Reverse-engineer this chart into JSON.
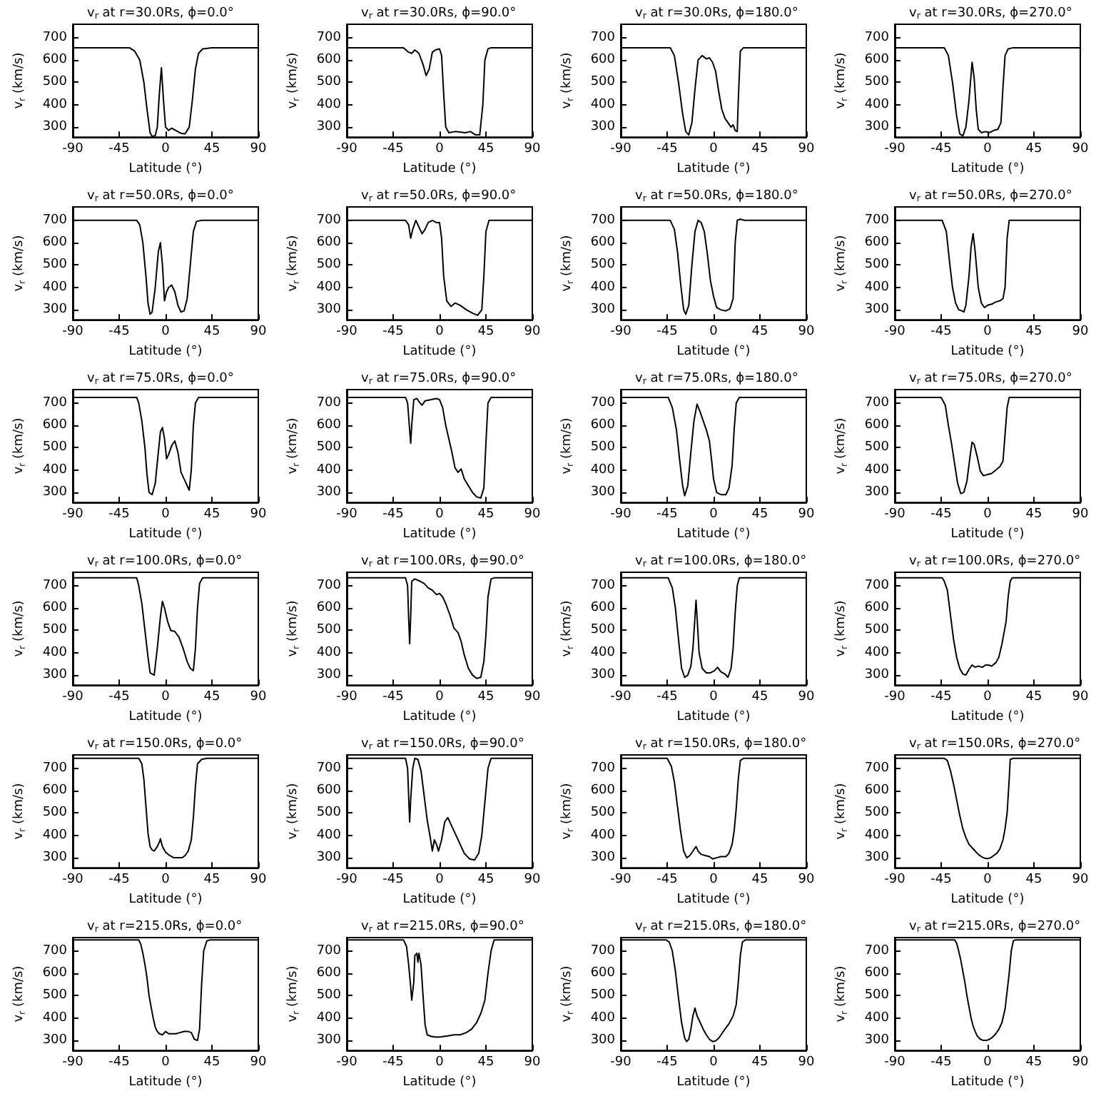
{
  "chart_data": [
    {
      "type": "line",
      "title": "v$_{r}$ at r=30.0Rs, ϕ=0.0°",
      "xlabel": "Latitude (°)",
      "ylabel": "v$_{r}$ (km/s)",
      "color": "#000000",
      "xlim": [
        -90,
        90
      ],
      "xticks": [
        -90,
        -45,
        0,
        45,
        90
      ],
      "ylim": [
        255,
        760
      ],
      "yticks": [
        300,
        400,
        500,
        600,
        700
      ],
      "x": [
        -90,
        -35,
        -30,
        -25,
        -21,
        -18,
        -15,
        -13,
        -10,
        -8,
        -6,
        -4,
        -2,
        0,
        3,
        6,
        10,
        15,
        19,
        23,
        26,
        29,
        32,
        36,
        45,
        90
      ],
      "values": [
        655,
        655,
        640,
        600,
        500,
        380,
        275,
        258,
        262,
        300,
        450,
        565,
        420,
        300,
        285,
        295,
        285,
        272,
        270,
        300,
        420,
        560,
        630,
        650,
        655,
        655
      ]
    },
    {
      "type": "line",
      "title": "v$_{r}$ at r=30.0Rs, ϕ=90.0°",
      "xlabel": "Latitude (°)",
      "ylabel": "v$_{r}$ (km/s)",
      "color": "#000000",
      "xlim": [
        -90,
        90
      ],
      "xticks": [
        -90,
        -45,
        0,
        45,
        90
      ],
      "ylim": [
        255,
        760
      ],
      "yticks": [
        300,
        400,
        500,
        600,
        700
      ],
      "x": [
        -90,
        -35,
        -30,
        -27,
        -24,
        -20,
        -16,
        -13,
        -10,
        -7,
        -4,
        0,
        2,
        4,
        6,
        9,
        15,
        25,
        30,
        35,
        39,
        42,
        44,
        47,
        50,
        90
      ],
      "values": [
        655,
        655,
        635,
        630,
        645,
        630,
        580,
        530,
        560,
        635,
        645,
        650,
        620,
        450,
        300,
        275,
        280,
        275,
        280,
        265,
        265,
        400,
        600,
        650,
        655,
        655
      ]
    },
    {
      "type": "line",
      "title": "v$_{r}$ at r=30.0Rs, ϕ=180.0°",
      "xlabel": "Latitude (°)",
      "ylabel": "v$_{r}$ (km/s)",
      "color": "#000000",
      "xlim": [
        -90,
        90
      ],
      "xticks": [
        -90,
        -45,
        0,
        45,
        90
      ],
      "ylim": [
        255,
        760
      ],
      "yticks": [
        300,
        400,
        500,
        600,
        700
      ],
      "x": [
        -90,
        -42,
        -38,
        -34,
        -30,
        -27,
        -24,
        -21,
        -18,
        -15,
        -11,
        -7,
        -4,
        -1,
        2,
        5,
        8,
        11,
        14,
        17,
        19,
        21,
        23,
        24,
        26,
        29,
        90
      ],
      "values": [
        655,
        655,
        620,
        500,
        360,
        280,
        265,
        320,
        470,
        600,
        620,
        605,
        610,
        590,
        550,
        460,
        380,
        340,
        320,
        300,
        310,
        285,
        280,
        420,
        640,
        655,
        655
      ]
    },
    {
      "type": "line",
      "title": "v$_{r}$ at r=30.0Rs, ϕ=270.0°",
      "xlabel": "Latitude (°)",
      "ylabel": "v$_{r}$ (km/s)",
      "color": "#000000",
      "xlim": [
        -90,
        90
      ],
      "xticks": [
        -90,
        -45,
        0,
        45,
        90
      ],
      "ylim": [
        255,
        760
      ],
      "yticks": [
        300,
        400,
        500,
        600,
        700
      ],
      "x": [
        -90,
        -42,
        -38,
        -34,
        -30,
        -27,
        -24,
        -21,
        -18,
        -15,
        -13,
        -11,
        -9,
        -6,
        -2,
        2,
        6,
        10,
        13,
        15,
        17,
        20,
        25,
        90
      ],
      "values": [
        655,
        655,
        620,
        500,
        350,
        270,
        260,
        300,
        420,
        590,
        520,
        380,
        290,
        275,
        280,
        275,
        285,
        290,
        320,
        480,
        620,
        650,
        655,
        655
      ]
    },
    {
      "type": "line",
      "title": "v$_{r}$ at r=50.0Rs, ϕ=0.0°",
      "xlabel": "Latitude (°)",
      "ylabel": "v$_{r}$ (km/s)",
      "color": "#000000",
      "xlim": [
        -90,
        90
      ],
      "xticks": [
        -90,
        -45,
        0,
        45,
        90
      ],
      "ylim": [
        255,
        760
      ],
      "yticks": [
        300,
        400,
        500,
        600,
        700
      ],
      "x": [
        -90,
        -28,
        -25,
        -22,
        -19,
        -17,
        -15,
        -13,
        -10,
        -7,
        -5,
        -3,
        -1,
        1,
        3,
        6,
        9,
        12,
        15,
        18,
        21,
        24,
        27,
        30,
        35,
        90
      ],
      "values": [
        700,
        700,
        680,
        600,
        450,
        330,
        280,
        290,
        400,
        560,
        600,
        500,
        340,
        380,
        400,
        410,
        380,
        320,
        290,
        295,
        350,
        500,
        650,
        695,
        700,
        700
      ]
    },
    {
      "type": "line",
      "title": "v$_{r}$ at r=50.0Rs, ϕ=90.0°",
      "xlabel": "Latitude (°)",
      "ylabel": "v$_{r}$ (km/s)",
      "color": "#000000",
      "xlim": [
        -90,
        90
      ],
      "xticks": [
        -90,
        -45,
        0,
        45,
        90
      ],
      "ylim": [
        255,
        760
      ],
      "yticks": [
        300,
        400,
        500,
        600,
        700
      ],
      "x": [
        -90,
        -33,
        -30,
        -28,
        -26,
        -23,
        -20,
        -17,
        -14,
        -11,
        -7,
        -3,
        0,
        2,
        4,
        7,
        11,
        15,
        20,
        26,
        32,
        37,
        41,
        43,
        45,
        48,
        90
      ],
      "values": [
        700,
        700,
        680,
        620,
        660,
        700,
        670,
        640,
        660,
        690,
        700,
        690,
        690,
        620,
        450,
        340,
        315,
        330,
        320,
        300,
        285,
        275,
        300,
        450,
        650,
        700,
        700
      ]
    },
    {
      "type": "line",
      "title": "v$_{r}$ at r=50.0Rs, ϕ=180.0°",
      "xlabel": "Latitude (°)",
      "ylabel": "v$_{r}$ (km/s)",
      "color": "#000000",
      "xlim": [
        -90,
        90
      ],
      "xticks": [
        -90,
        -45,
        0,
        45,
        90
      ],
      "ylim": [
        255,
        760
      ],
      "yticks": [
        300,
        400,
        500,
        600,
        700
      ],
      "x": [
        -90,
        -42,
        -38,
        -35,
        -32,
        -29,
        -27,
        -24,
        -21,
        -18,
        -15,
        -12,
        -9,
        -6,
        -3,
        0,
        3,
        7,
        12,
        16,
        19,
        21,
        23,
        26,
        30,
        90
      ],
      "values": [
        700,
        700,
        660,
        560,
        420,
        300,
        280,
        320,
        500,
        650,
        700,
        690,
        650,
        550,
        430,
        360,
        310,
        300,
        295,
        305,
        350,
        600,
        700,
        705,
        700,
        700
      ]
    },
    {
      "type": "line",
      "title": "v$_{r}$ at r=50.0Rs, ϕ=270.0°",
      "xlabel": "Latitude (°)",
      "ylabel": "v$_{r}$ (km/s)",
      "color": "#000000",
      "xlim": [
        -90,
        90
      ],
      "xticks": [
        -90,
        -45,
        0,
        45,
        90
      ],
      "ylim": [
        255,
        760
      ],
      "yticks": [
        300,
        400,
        500,
        600,
        700
      ],
      "x": [
        -90,
        -44,
        -40,
        -37,
        -34,
        -31,
        -28,
        -25,
        -23,
        -21,
        -18,
        -16,
        -14,
        -12,
        -9,
        -6,
        -3,
        0,
        4,
        8,
        12,
        15,
        17,
        19,
        21,
        30,
        90
      ],
      "values": [
        700,
        700,
        650,
        520,
        400,
        330,
        300,
        295,
        290,
        320,
        450,
        580,
        640,
        560,
        400,
        330,
        310,
        320,
        325,
        335,
        340,
        350,
        400,
        620,
        700,
        700,
        700
      ]
    },
    {
      "type": "line",
      "title": "v$_{r}$ at r=75.0Rs, ϕ=0.0°",
      "xlabel": "Latitude (°)",
      "ylabel": "v$_{r}$ (km/s)",
      "color": "#000000",
      "xlim": [
        -90,
        90
      ],
      "xticks": [
        -90,
        -45,
        0,
        45,
        90
      ],
      "ylim": [
        255,
        760
      ],
      "yticks": [
        300,
        400,
        500,
        600,
        700
      ],
      "x": [
        -90,
        -28,
        -26,
        -23,
        -20,
        -18,
        -16,
        -13,
        -10,
        -7,
        -5,
        -3,
        -1,
        1,
        3,
        6,
        9,
        12,
        15,
        19,
        23,
        25,
        27,
        29,
        32,
        90
      ],
      "values": [
        725,
        725,
        700,
        620,
        500,
        380,
        300,
        290,
        340,
        480,
        570,
        590,
        540,
        450,
        470,
        510,
        530,
        480,
        390,
        350,
        310,
        400,
        600,
        700,
        725,
        725
      ]
    },
    {
      "type": "line",
      "title": "v$_{r}$ at r=75.0Rs, ϕ=90.0°",
      "xlabel": "Latitude (°)",
      "ylabel": "v$_{r}$ (km/s)",
      "color": "#000000",
      "xlim": [
        -90,
        90
      ],
      "xticks": [
        -90,
        -45,
        0,
        45,
        90
      ],
      "ylim": [
        255,
        760
      ],
      "yticks": [
        300,
        400,
        500,
        600,
        700
      ],
      "x": [
        -90,
        -33,
        -31,
        -29,
        -28,
        -27,
        -25,
        -22,
        -19,
        -17,
        -14,
        -8,
        -3,
        0,
        3,
        6,
        9,
        12,
        15,
        18,
        21,
        24,
        28,
        32,
        36,
        40,
        43,
        45,
        47,
        50,
        90
      ],
      "values": [
        725,
        725,
        700,
        580,
        520,
        600,
        715,
        720,
        700,
        690,
        710,
        715,
        720,
        715,
        680,
        600,
        540,
        480,
        410,
        390,
        405,
        360,
        330,
        300,
        280,
        275,
        320,
        520,
        700,
        725,
        725
      ]
    },
    {
      "type": "line",
      "title": "v$_{r}$ at r=75.0Rs, ϕ=180.0°",
      "xlabel": "Latitude (°)",
      "ylabel": "v$_{r}$ (km/s)",
      "color": "#000000",
      "xlim": [
        -90,
        90
      ],
      "xticks": [
        -90,
        -45,
        0,
        45,
        90
      ],
      "ylim": [
        255,
        760
      ],
      "yticks": [
        300,
        400,
        500,
        600,
        700
      ],
      "x": [
        -90,
        -44,
        -40,
        -36,
        -33,
        -30,
        -28,
        -25,
        -22,
        -19,
        -16,
        -13,
        -10,
        -7,
        -4,
        -2,
        0,
        3,
        7,
        12,
        15,
        18,
        20,
        22,
        25,
        90
      ],
      "values": [
        725,
        725,
        680,
        580,
        450,
        330,
        285,
        330,
        480,
        620,
        695,
        660,
        620,
        580,
        530,
        450,
        360,
        300,
        290,
        290,
        320,
        420,
        580,
        700,
        725,
        725
      ]
    },
    {
      "type": "line",
      "title": "v$_{r}$ at r=75.0Rs, ϕ=270.0°",
      "xlabel": "Latitude (°)",
      "ylabel": "v$_{r}$ (km/s)",
      "color": "#000000",
      "xlim": [
        -90,
        90
      ],
      "xticks": [
        -90,
        -45,
        0,
        45,
        90
      ],
      "ylim": [
        255,
        760
      ],
      "yticks": [
        300,
        400,
        500,
        600,
        700
      ],
      "x": [
        -90,
        -45,
        -41,
        -38,
        -35,
        -32,
        -29,
        -26,
        -23,
        -20,
        -17,
        -15,
        -13,
        -10,
        -7,
        -4,
        0,
        4,
        8,
        12,
        15,
        17,
        19,
        21,
        90
      ],
      "values": [
        725,
        725,
        690,
        600,
        520,
        430,
        340,
        295,
        300,
        350,
        460,
        525,
        515,
        460,
        395,
        375,
        380,
        385,
        400,
        415,
        440,
        560,
        680,
        725,
        725
      ]
    },
    {
      "type": "line",
      "title": "v$_{r}$ at r=100.0Rs, ϕ=0.0°",
      "xlabel": "Latitude (°)",
      "ylabel": "v$_{r}$ (km/s)",
      "color": "#000000",
      "xlim": [
        -90,
        90
      ],
      "xticks": [
        -90,
        -45,
        0,
        45,
        90
      ],
      "ylim": [
        255,
        760
      ],
      "yticks": [
        300,
        400,
        500,
        600,
        700
      ],
      "x": [
        -90,
        -28,
        -26,
        -23,
        -20,
        -17,
        -15,
        -11,
        -8,
        -5,
        -3,
        -1,
        2,
        5,
        9,
        13,
        17,
        21,
        24,
        27,
        29,
        31,
        33,
        36,
        90
      ],
      "values": [
        735,
        735,
        700,
        620,
        500,
        380,
        310,
        300,
        420,
        560,
        630,
        600,
        540,
        500,
        495,
        470,
        420,
        360,
        330,
        320,
        420,
        600,
        710,
        735,
        735
      ]
    },
    {
      "type": "line",
      "title": "v$_{r}$ at r=100.0Rs, ϕ=90.0°",
      "xlabel": "Latitude (°)",
      "ylabel": "v$_{r}$ (km/s)",
      "color": "#000000",
      "xlim": [
        -90,
        90
      ],
      "xticks": [
        -90,
        -45,
        0,
        45,
        90
      ],
      "ylim": [
        255,
        760
      ],
      "yticks": [
        300,
        400,
        500,
        600,
        700
      ],
      "x": [
        -90,
        -33,
        -31,
        -30,
        -29,
        -28,
        -27,
        -24,
        -19,
        -15,
        -11,
        -7,
        -3,
        0,
        3,
        6,
        10,
        14,
        18,
        21,
        24,
        28,
        32,
        36,
        40,
        43,
        45,
        47,
        50,
        53,
        90
      ],
      "values": [
        735,
        735,
        700,
        560,
        440,
        560,
        720,
        730,
        720,
        710,
        690,
        680,
        660,
        665,
        650,
        620,
        570,
        510,
        490,
        450,
        390,
        330,
        300,
        285,
        290,
        360,
        480,
        650,
        730,
        735,
        735
      ]
    },
    {
      "type": "line",
      "title": "v$_{r}$ at r=100.0Rs, ϕ=180.0°",
      "xlabel": "Latitude (°)",
      "ylabel": "v$_{r}$ (km/s)",
      "color": "#000000",
      "xlim": [
        -90,
        90
      ],
      "xticks": [
        -90,
        -45,
        0,
        45,
        90
      ],
      "ylim": [
        255,
        760
      ],
      "yticks": [
        300,
        400,
        500,
        600,
        700
      ],
      "x": [
        -90,
        -44,
        -40,
        -37,
        -34,
        -31,
        -28,
        -25,
        -22,
        -20,
        -18,
        -17,
        -16,
        -14,
        -11,
        -7,
        -3,
        1,
        4,
        7,
        11,
        14,
        17,
        19,
        21,
        23,
        25,
        90
      ],
      "values": [
        735,
        735,
        690,
        600,
        460,
        330,
        290,
        300,
        340,
        420,
        560,
        635,
        560,
        400,
        330,
        310,
        310,
        320,
        335,
        315,
        305,
        290,
        330,
        420,
        580,
        700,
        735,
        735
      ]
    },
    {
      "type": "line",
      "title": "v$_{r}$ at r=100.0Rs, ϕ=270.0°",
      "xlabel": "Latitude (°)",
      "ylabel": "v$_{r}$ (km/s)",
      "color": "#000000",
      "xlim": [
        -90,
        90
      ],
      "xticks": [
        -90,
        -45,
        0,
        45,
        90
      ],
      "ylim": [
        255,
        760
      ],
      "yticks": [
        300,
        400,
        500,
        600,
        700
      ],
      "x": [
        -90,
        -44,
        -42,
        -39,
        -36,
        -33,
        -30,
        -27,
        -24,
        -21,
        -18,
        -15,
        -12,
        -9,
        -5,
        -2,
        1,
        4,
        8,
        11,
        14,
        16,
        18,
        20,
        22,
        24,
        90
      ],
      "values": [
        735,
        735,
        720,
        680,
        570,
        460,
        380,
        330,
        305,
        300,
        325,
        345,
        335,
        340,
        335,
        345,
        345,
        340,
        355,
        380,
        440,
        490,
        540,
        650,
        720,
        735,
        735
      ]
    },
    {
      "type": "line",
      "title": "v$_{r}$ at r=150.0Rs, ϕ=0.0°",
      "xlabel": "Latitude (°)",
      "ylabel": "v$_{r}$ (km/s)",
      "color": "#000000",
      "xlim": [
        -90,
        90
      ],
      "xticks": [
        -90,
        -45,
        0,
        45,
        90
      ],
      "ylim": [
        255,
        760
      ],
      "yticks": [
        300,
        400,
        500,
        600,
        700
      ],
      "x": [
        -90,
        -26,
        -23,
        -21,
        -19,
        -17,
        -15,
        -13,
        -11,
        -8,
        -6,
        -5,
        -3,
        0,
        4,
        8,
        12,
        16,
        19,
        22,
        25,
        27,
        29,
        31,
        35,
        40,
        90
      ],
      "values": [
        745,
        745,
        720,
        650,
        530,
        410,
        350,
        335,
        330,
        350,
        370,
        385,
        350,
        325,
        310,
        300,
        300,
        300,
        310,
        330,
        380,
        480,
        620,
        720,
        740,
        745,
        745
      ]
    },
    {
      "type": "line",
      "title": "v$_{r}$ at r=150.0Rs, ϕ=90.0°",
      "xlabel": "Latitude (°)",
      "ylabel": "v$_{r}$ (km/s)",
      "color": "#000000",
      "xlim": [
        -90,
        90
      ],
      "xticks": [
        -90,
        -45,
        0,
        45,
        90
      ],
      "ylim": [
        255,
        760
      ],
      "yticks": [
        300,
        400,
        500,
        600,
        700
      ],
      "x": [
        -90,
        -33,
        -31,
        -30,
        -29,
        -28,
        -26,
        -24,
        -21,
        -18,
        -15,
        -12,
        -9,
        -7,
        -5,
        -3,
        -1,
        2,
        5,
        8,
        11,
        15,
        19,
        24,
        29,
        34,
        38,
        41,
        44,
        47,
        50,
        90
      ],
      "values": [
        745,
        745,
        700,
        580,
        460,
        560,
        700,
        745,
        740,
        690,
        580,
        470,
        390,
        330,
        380,
        360,
        330,
        380,
        460,
        480,
        450,
        410,
        370,
        320,
        295,
        290,
        320,
        400,
        550,
        700,
        745,
        745
      ]
    },
    {
      "type": "line",
      "title": "v$_{r}$ at r=150.0Rs, ϕ=180.0°",
      "xlabel": "Latitude (°)",
      "ylabel": "v$_{r}$ (km/s)",
      "color": "#000000",
      "xlim": [
        -90,
        90
      ],
      "xticks": [
        -90,
        -45,
        0,
        45,
        90
      ],
      "ylim": [
        255,
        760
      ],
      "yticks": [
        300,
        400,
        500,
        600,
        700
      ],
      "x": [
        -90,
        -45,
        -41,
        -38,
        -35,
        -32,
        -29,
        -26,
        -23,
        -20,
        -17,
        -15,
        -12,
        -8,
        -4,
        -1,
        3,
        7,
        12,
        15,
        18,
        20,
        22,
        24,
        26,
        29,
        90
      ],
      "values": [
        745,
        745,
        710,
        640,
        530,
        420,
        330,
        300,
        310,
        330,
        350,
        330,
        315,
        310,
        305,
        295,
        300,
        305,
        305,
        320,
        360,
        420,
        520,
        650,
        735,
        745,
        745
      ]
    },
    {
      "type": "line",
      "title": "v$_{r}$ at r=150.0Rs, ϕ=270.0°",
      "xlabel": "Latitude (°)",
      "ylabel": "v$_{r}$ (km/s)",
      "color": "#000000",
      "xlim": [
        -90,
        90
      ],
      "xticks": [
        -90,
        -45,
        0,
        45,
        90
      ],
      "ylim": [
        255,
        760
      ],
      "yticks": [
        300,
        400,
        500,
        600,
        700
      ],
      "x": [
        -90,
        -42,
        -39,
        -36,
        -33,
        -30,
        -27,
        -24,
        -21,
        -18,
        -15,
        -12,
        -9,
        -6,
        -3,
        0,
        3,
        6,
        9,
        12,
        15,
        17,
        19,
        21,
        22,
        25,
        90
      ],
      "values": [
        745,
        745,
        735,
        690,
        630,
        560,
        490,
        430,
        390,
        360,
        345,
        330,
        315,
        305,
        298,
        296,
        300,
        310,
        320,
        340,
        380,
        430,
        500,
        650,
        740,
        745,
        745
      ]
    },
    {
      "type": "line",
      "title": "v$_{r}$ at r=215.0Rs, ϕ=0.0°",
      "xlabel": "Latitude (°)",
      "ylabel": "v$_{r}$ (km/s)",
      "color": "#000000",
      "xlim": [
        -90,
        90
      ],
      "xticks": [
        -90,
        -45,
        0,
        45,
        90
      ],
      "ylim": [
        255,
        760
      ],
      "yticks": [
        300,
        400,
        500,
        600,
        700
      ],
      "x": [
        -90,
        -26,
        -24,
        -22,
        -20,
        -18,
        -16,
        -14,
        -12,
        -10,
        -8,
        -6,
        -3,
        0,
        3,
        6,
        10,
        14,
        18,
        22,
        25,
        28,
        31,
        33,
        35,
        37,
        40,
        43,
        90
      ],
      "values": [
        750,
        750,
        730,
        690,
        640,
        580,
        500,
        450,
        400,
        360,
        340,
        330,
        325,
        340,
        330,
        330,
        330,
        335,
        340,
        340,
        335,
        305,
        300,
        350,
        550,
        700,
        745,
        750,
        750
      ]
    },
    {
      "type": "line",
      "title": "v$_{r}$ at r=215.0Rs, ϕ=90.0°",
      "xlabel": "Latitude (°)",
      "ylabel": "v$_{r}$ (km/s)",
      "color": "#000000",
      "xlim": [
        -90,
        90
      ],
      "xticks": [
        -90,
        -45,
        0,
        45,
        90
      ],
      "ylim": [
        255,
        760
      ],
      "yticks": [
        300,
        400,
        500,
        600,
        700
      ],
      "x": [
        -90,
        -35,
        -32,
        -30,
        -28,
        -27,
        -25,
        -24,
        -22,
        -21,
        -20,
        -18,
        -16,
        -14,
        -12,
        -8,
        -3,
        2,
        8,
        14,
        20,
        26,
        31,
        36,
        40,
        44,
        47,
        50,
        53,
        90
      ],
      "values": [
        750,
        750,
        720,
        640,
        540,
        480,
        560,
        680,
        690,
        650,
        690,
        640,
        500,
        370,
        325,
        318,
        315,
        316,
        320,
        325,
        325,
        335,
        350,
        380,
        420,
        480,
        600,
        700,
        750,
        750
      ]
    },
    {
      "type": "line",
      "title": "v$_{r}$ at r=215.0Rs, ϕ=180.0°",
      "xlabel": "Latitude (°)",
      "ylabel": "v$_{r}$ (km/s)",
      "color": "#000000",
      "xlim": [
        -90,
        90
      ],
      "xticks": [
        -90,
        -45,
        0,
        45,
        90
      ],
      "ylim": [
        255,
        760
      ],
      "yticks": [
        300,
        400,
        500,
        600,
        700
      ],
      "x": [
        -90,
        -46,
        -43,
        -40,
        -37,
        -34,
        -31,
        -28,
        -26,
        -24,
        -22,
        -20,
        -18,
        -16,
        -13,
        -10,
        -7,
        -4,
        -1,
        2,
        5,
        8,
        11,
        15,
        19,
        22,
        24,
        26,
        28,
        31,
        90
      ],
      "values": [
        750,
        750,
        740,
        700,
        610,
        490,
        380,
        310,
        295,
        305,
        350,
        410,
        445,
        410,
        380,
        350,
        325,
        305,
        295,
        298,
        310,
        330,
        350,
        375,
        410,
        460,
        560,
        680,
        740,
        750,
        750
      ]
    },
    {
      "type": "line",
      "title": "v$_{r}$ at r=215.0Rs, ϕ=270.0°",
      "xlabel": "Latitude (°)",
      "ylabel": "v$_{r}$ (km/s)",
      "color": "#000000",
      "xlim": [
        -90,
        90
      ],
      "xticks": [
        -90,
        -45,
        0,
        45,
        90
      ],
      "ylim": [
        255,
        760
      ],
      "yticks": [
        300,
        400,
        500,
        600,
        700
      ],
      "x": [
        -90,
        -32,
        -30,
        -28,
        -26,
        -24,
        -22,
        -20,
        -18,
        -16,
        -14,
        -12,
        -10,
        -7,
        -4,
        -1,
        2,
        5,
        8,
        11,
        14,
        17,
        19,
        21,
        23,
        25,
        27,
        90
      ],
      "values": [
        750,
        750,
        735,
        700,
        660,
        610,
        560,
        500,
        450,
        400,
        365,
        340,
        320,
        305,
        300,
        300,
        305,
        315,
        330,
        350,
        380,
        440,
        520,
        600,
        700,
        745,
        750,
        750
      ]
    }
  ]
}
